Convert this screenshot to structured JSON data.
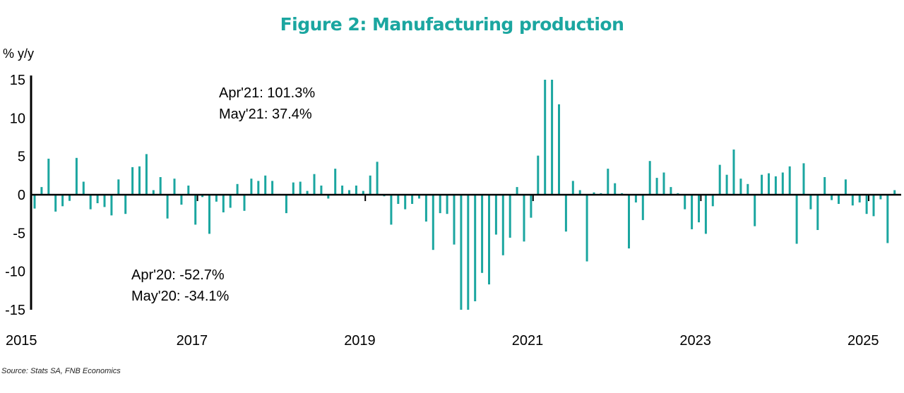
{
  "title": "Figure 2: Manufacturing production",
  "unit_label": "% y/y",
  "annotations": [
    {
      "lines": [
        "Apr'21: 101.3%",
        "May'21: 37.4%"
      ]
    },
    {
      "lines": [
        "Apr'20: -52.7%",
        "May'20: -34.1%"
      ]
    }
  ],
  "source": "Source: Stats SA, FNB Economics",
  "colors": {
    "bar": "#1BA6A0",
    "title": "#1BA6A0",
    "axis": "#000000"
  },
  "chart_data": {
    "type": "bar",
    "title": "Figure 2: Manufacturing production",
    "ylabel": "% y/y",
    "xlabel": "",
    "ylim": [
      -15,
      15
    ],
    "yticks": [
      15,
      10,
      5,
      0,
      -5,
      -10,
      -15
    ],
    "xticks": [
      "2015",
      "2017",
      "2019",
      "2021",
      "2023",
      "2025"
    ],
    "start_month": "Jan 2015",
    "end_month": "Jul 2025",
    "grid": false,
    "series": [
      {
        "values": [
          -1.8,
          1.0,
          4.7,
          -2.2,
          -1.5,
          -0.8,
          4.8,
          1.7,
          -1.9,
          -1.1,
          -1.6,
          -2.7,
          2.0,
          -2.5,
          3.6,
          3.7,
          5.3,
          0.6,
          2.3,
          -3.1,
          2.1,
          -1.3,
          1.2,
          -3.9,
          -0.3,
          -5.1,
          -0.9,
          -2.3,
          -1.7,
          1.4,
          -2.1,
          2.1,
          1.8,
          2.5,
          1.8,
          0.1,
          -2.4,
          1.6,
          1.7,
          0.5,
          2.7,
          1.2,
          -0.5,
          3.4,
          1.2,
          0.6,
          1.2,
          0.5,
          2.5,
          4.3,
          -0.2,
          -3.9,
          -1.2,
          -1.9,
          -1.2,
          -0.5,
          -3.5,
          -7.2,
          -2.4,
          -2.5,
          -6.5,
          -15,
          -15,
          -13.9,
          -10.2,
          -11.7,
          -5.2,
          -7.9,
          -5.6,
          1.0,
          -6.1,
          -3.0,
          5.1,
          15,
          15,
          11.8,
          -4.8,
          1.8,
          0.6,
          -8.7,
          0.3,
          0.2,
          3.4,
          1.5,
          0.2,
          -7.0,
          -1.0,
          -3.3,
          4.4,
          2.2,
          2.9,
          1.0,
          0.2,
          -1.9,
          -4.5,
          -3.6,
          -5.1,
          -1.5,
          3.9,
          2.6,
          5.9,
          2.1,
          1.4,
          -4.1,
          2.6,
          2.8,
          2.4,
          2.9,
          3.7,
          -6.4,
          4.1,
          -1.9,
          -4.6,
          2.3,
          -0.7,
          -1.2,
          2.0,
          -1.4,
          -1.0,
          -2.5,
          -2.8,
          -0.6,
          -6.3,
          0.6
        ]
      }
    ]
  }
}
